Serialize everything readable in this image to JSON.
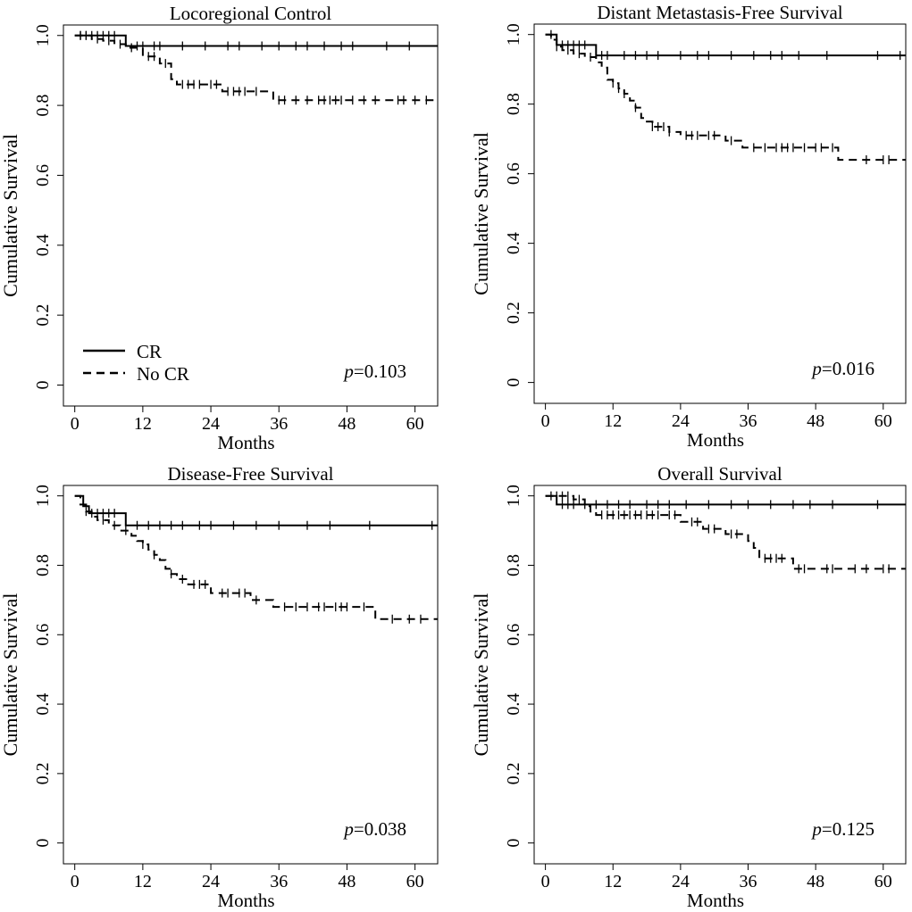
{
  "figure": {
    "legend": {
      "solid_label": "CR",
      "dashed_label": "No CR"
    }
  },
  "chart_data": [
    {
      "type": "line",
      "title": "Locoregional Control",
      "xlabel": "Months",
      "ylabel": "Cumulative Survival",
      "xticks": [
        0,
        12,
        24,
        36,
        48,
        60
      ],
      "yticks": [
        0,
        0.2,
        0.4,
        0.6,
        0.8,
        1.0
      ],
      "ytick_labels": [
        "0",
        "0.2",
        "0.4",
        "0.6",
        "0.8",
        "1.0"
      ],
      "xlim": [
        -2,
        64
      ],
      "ylim": [
        -0.06,
        1.03
      ],
      "p_value": "0.103",
      "legend": [
        "CR",
        "No CR"
      ],
      "series": [
        {
          "name": "CR",
          "style": "solid",
          "x": [
            0,
            9,
            9,
            64
          ],
          "y": [
            1.0,
            1.0,
            0.97,
            0.97
          ],
          "censor": [
            1,
            2,
            3,
            4,
            5,
            6,
            7,
            11,
            12,
            14,
            15,
            19,
            23,
            27,
            29,
            33,
            36,
            39,
            41,
            44,
            47,
            49,
            55,
            59
          ]
        },
        {
          "name": "No CR",
          "style": "dashed",
          "x": [
            0,
            3,
            3,
            5,
            5,
            7,
            7,
            9,
            9,
            12,
            12,
            15,
            15,
            17,
            17,
            18,
            18,
            26,
            26,
            35,
            35,
            64
          ],
          "y": [
            1.0,
            1.0,
            0.99,
            0.99,
            0.985,
            0.985,
            0.975,
            0.975,
            0.965,
            0.965,
            0.94,
            0.94,
            0.92,
            0.92,
            0.875,
            0.875,
            0.86,
            0.86,
            0.84,
            0.84,
            0.815,
            0.815
          ],
          "censor": [
            1,
            2,
            4,
            6,
            8,
            10,
            13,
            14,
            16,
            19,
            20,
            21,
            22,
            24,
            25,
            27,
            28,
            29,
            30,
            32,
            36,
            37,
            39,
            41,
            43,
            44,
            45,
            46,
            47,
            49,
            51,
            53,
            57,
            58,
            60,
            62
          ]
        }
      ]
    },
    {
      "type": "line",
      "title": "Distant Metastasis-Free Survival",
      "xlabel": "Months",
      "ylabel": "Cumulative Survival",
      "xticks": [
        0,
        12,
        24,
        36,
        48,
        60
      ],
      "yticks": [
        0,
        0.2,
        0.4,
        0.6,
        0.8,
        1.0
      ],
      "ytick_labels": [
        "0",
        "0.2",
        "0.4",
        "0.6",
        "0.8",
        "1.0"
      ],
      "xlim": [
        -2,
        64
      ],
      "ylim": [
        -0.06,
        1.03
      ],
      "p_value": "0.016",
      "series": [
        {
          "name": "CR",
          "style": "solid",
          "x": [
            0,
            2,
            2,
            9,
            9,
            64
          ],
          "y": [
            1.0,
            1.0,
            0.97,
            0.97,
            0.94,
            0.94
          ],
          "censor": [
            1,
            3,
            4,
            5,
            6,
            7,
            10,
            11,
            14,
            16,
            18,
            20,
            24,
            27,
            29,
            33,
            37,
            40,
            42,
            45,
            50,
            59,
            63
          ]
        },
        {
          "name": "No CR",
          "style": "dashed",
          "x": [
            0,
            1,
            1,
            2,
            2,
            3,
            3,
            5,
            5,
            7,
            7,
            9,
            9,
            10,
            10,
            11,
            11,
            12,
            12,
            13,
            13,
            14,
            14,
            15,
            15,
            16,
            16,
            17,
            17,
            18,
            18,
            19,
            19,
            22,
            22,
            24,
            24,
            32,
            32,
            35,
            35,
            52,
            52,
            64
          ],
          "y": [
            1.0,
            1.0,
            0.985,
            0.985,
            0.965,
            0.965,
            0.955,
            0.955,
            0.945,
            0.945,
            0.935,
            0.935,
            0.92,
            0.92,
            0.905,
            0.905,
            0.87,
            0.87,
            0.86,
            0.86,
            0.845,
            0.845,
            0.83,
            0.83,
            0.81,
            0.81,
            0.79,
            0.79,
            0.76,
            0.76,
            0.75,
            0.75,
            0.735,
            0.735,
            0.72,
            0.72,
            0.71,
            0.71,
            0.695,
            0.695,
            0.675,
            0.675,
            0.64,
            0.64
          ],
          "censor": [
            2,
            4,
            6,
            8,
            12,
            13,
            14,
            16,
            19,
            20,
            21,
            22,
            25,
            26,
            27,
            29,
            30,
            33,
            37,
            39,
            41,
            42,
            43,
            44,
            46,
            48,
            49,
            51,
            57,
            60,
            61
          ]
        }
      ]
    },
    {
      "type": "line",
      "title": "Disease-Free Survival",
      "xlabel": "Months",
      "ylabel": "Cumulative Survival",
      "xticks": [
        0,
        12,
        24,
        36,
        48,
        60
      ],
      "yticks": [
        0,
        0.2,
        0.4,
        0.6,
        0.8,
        1.0
      ],
      "ytick_labels": [
        "0",
        "0.2",
        "0.4",
        "0.6",
        "0.8",
        "1.0"
      ],
      "xlim": [
        -2,
        64
      ],
      "ylim": [
        -0.06,
        1.03
      ],
      "p_value": "0.038",
      "series": [
        {
          "name": "CR",
          "style": "solid",
          "x": [
            0,
            1.5,
            1.5,
            2.5,
            2.5,
            9,
            9,
            64
          ],
          "y": [
            1.0,
            1.0,
            0.97,
            0.97,
            0.95,
            0.95,
            0.915,
            0.915
          ],
          "censor": [
            3,
            4,
            5,
            6,
            7,
            11,
            13,
            15,
            17,
            19,
            22,
            24,
            28,
            32,
            36,
            41,
            45,
            52,
            63
          ]
        },
        {
          "name": "No CR",
          "style": "dashed",
          "x": [
            0,
            1,
            1,
            2,
            2,
            3,
            3,
            4,
            4,
            6,
            6,
            8,
            8,
            10,
            10,
            11,
            11,
            12,
            12,
            13,
            13,
            14,
            14,
            15,
            15,
            16,
            16,
            17,
            17,
            18,
            18,
            20,
            20,
            24,
            24,
            31,
            31,
            35,
            35,
            53,
            53,
            64
          ],
          "y": [
            1.0,
            1.0,
            0.975,
            0.975,
            0.955,
            0.955,
            0.94,
            0.94,
            0.93,
            0.93,
            0.915,
            0.915,
            0.9,
            0.9,
            0.885,
            0.885,
            0.87,
            0.87,
            0.86,
            0.86,
            0.845,
            0.845,
            0.83,
            0.83,
            0.815,
            0.815,
            0.79,
            0.79,
            0.775,
            0.775,
            0.76,
            0.76,
            0.745,
            0.745,
            0.72,
            0.72,
            0.7,
            0.7,
            0.68,
            0.68,
            0.645,
            0.645
          ],
          "censor": [
            2,
            5,
            7,
            9,
            12,
            14,
            17,
            19,
            21,
            22,
            23,
            26,
            27,
            29,
            30,
            32,
            37,
            39,
            41,
            43,
            44,
            46,
            47,
            48,
            51,
            56,
            59,
            61
          ]
        }
      ]
    },
    {
      "type": "line",
      "title": "Overall Survival",
      "xlabel": "Months",
      "ylabel": "Cumulative Survival",
      "xticks": [
        0,
        12,
        24,
        36,
        48,
        60
      ],
      "yticks": [
        0,
        0.2,
        0.4,
        0.6,
        0.8,
        1.0
      ],
      "ytick_labels": [
        "0",
        "0.2",
        "0.4",
        "0.6",
        "0.8",
        "1.0"
      ],
      "xlim": [
        -2,
        64
      ],
      "ylim": [
        -0.06,
        1.03
      ],
      "p_value": "0.125",
      "series": [
        {
          "name": "CR",
          "style": "solid",
          "x": [
            0,
            2,
            2,
            64
          ],
          "y": [
            1.0,
            1.0,
            0.975,
            0.975
          ],
          "censor": [
            1,
            3,
            4,
            5,
            7,
            9,
            11,
            13,
            15,
            18,
            20,
            22,
            25,
            29,
            33,
            36,
            40,
            44,
            47,
            51,
            59
          ]
        },
        {
          "name": "No CR",
          "style": "dashed",
          "x": [
            0,
            5,
            5,
            7,
            7,
            8,
            8,
            9,
            9,
            24,
            24,
            28,
            28,
            32,
            32,
            36,
            36,
            37,
            37,
            38,
            38,
            44,
            44,
            49,
            49,
            64
          ],
          "y": [
            1.0,
            1.0,
            0.99,
            0.99,
            0.97,
            0.97,
            0.955,
            0.955,
            0.945,
            0.945,
            0.925,
            0.925,
            0.905,
            0.905,
            0.89,
            0.89,
            0.87,
            0.87,
            0.85,
            0.85,
            0.82,
            0.82,
            0.79,
            0.79,
            0.79,
            0.79
          ],
          "censor": [
            2,
            3,
            4,
            6,
            10,
            11,
            12,
            13,
            14,
            15,
            16,
            17,
            18,
            19,
            20,
            22,
            23,
            26,
            27,
            29,
            30,
            33,
            34,
            39,
            40,
            41,
            42,
            45,
            46,
            50,
            51,
            55,
            57,
            60,
            61
          ]
        }
      ]
    }
  ]
}
